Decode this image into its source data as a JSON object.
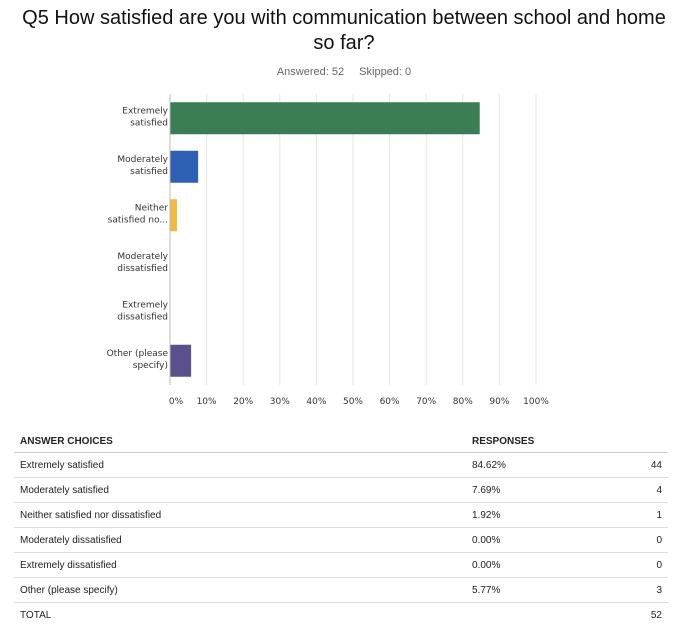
{
  "question": {
    "title_line1": "Q5 How satisfied are you with communication between school and home",
    "title_line2": "so far?",
    "answered": "Answered: 52",
    "skipped": "Skipped: 0"
  },
  "chart_data": {
    "type": "bar",
    "orientation": "horizontal",
    "categories": [
      "Extremely satisfied",
      "Moderately satisfied",
      "Neither satisfied no...",
      "Moderately dissatisfied",
      "Extremely dissatisfied",
      "Other (please specify)"
    ],
    "category_label_lines": [
      [
        "Extremely",
        "satisfied"
      ],
      [
        "Moderately",
        "satisfied"
      ],
      [
        "Neither",
        "satisfied no..."
      ],
      [
        "Moderately",
        "dissatisfied"
      ],
      [
        "Extremely",
        "dissatisfied"
      ],
      [
        "Other (please",
        "specify)"
      ]
    ],
    "values": [
      84.62,
      7.69,
      1.92,
      0.0,
      0.0,
      5.77
    ],
    "colors": [
      "#3a7d55",
      "#2f5fb3",
      "#f5b841",
      "#999999",
      "#999999",
      "#5b4f8c"
    ],
    "xlim": [
      0,
      100
    ],
    "x_ticks": [
      "0%",
      "10%",
      "20%",
      "30%",
      "40%",
      "50%",
      "60%",
      "70%",
      "80%",
      "90%",
      "100%"
    ],
    "grid": true
  },
  "table": {
    "headers": {
      "choice": "ANSWER CHOICES",
      "responses": "RESPONSES"
    },
    "rows": [
      {
        "choice": "Extremely satisfied",
        "pct": "84.62%",
        "count": "44"
      },
      {
        "choice": "Moderately satisfied",
        "pct": "7.69%",
        "count": "4"
      },
      {
        "choice": "Neither satisfied nor dissatisfied",
        "pct": "1.92%",
        "count": "1"
      },
      {
        "choice": "Moderately dissatisfied",
        "pct": "0.00%",
        "count": "0"
      },
      {
        "choice": "Extremely dissatisfied",
        "pct": "0.00%",
        "count": "0"
      },
      {
        "choice": "Other (please specify)",
        "pct": "5.77%",
        "count": "3"
      }
    ],
    "total_label": "TOTAL",
    "total_count": "52"
  }
}
